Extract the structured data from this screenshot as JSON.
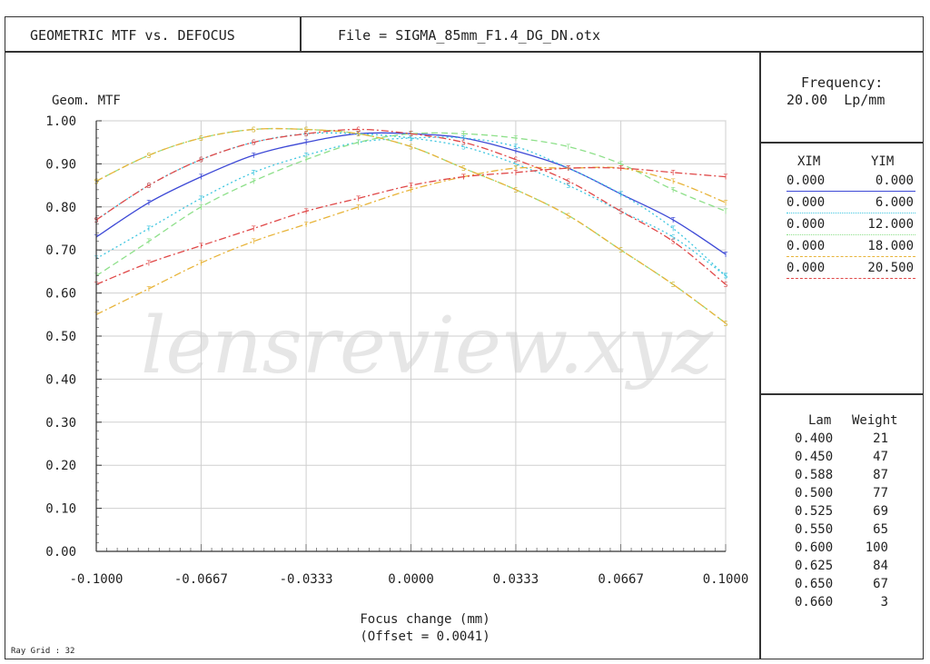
{
  "header": {
    "title": "GEOMETRIC MTF vs. DEFOCUS",
    "file": "File = SIGMA_85mm_F1.4_DG_DN.otx"
  },
  "frequency": {
    "label": "Frequency:",
    "value": "20.00  Lp/mm"
  },
  "field_table": {
    "col1": "XIM",
    "col2": "YIM",
    "rows": [
      {
        "xim": "0.000",
        "yim": "0.000",
        "color": "#3d49d6"
      },
      {
        "xim": "0.000",
        "yim": "6.000",
        "color": "#3ec6e0"
      },
      {
        "xim": "0.000",
        "yim": "12.000",
        "color": "#8ee08a"
      },
      {
        "xim": "0.000",
        "yim": "18.000",
        "color": "#e8b43a"
      },
      {
        "xim": "0.000",
        "yim": "20.500",
        "color": "#e04848"
      }
    ]
  },
  "wavelength_table": {
    "col1": "Lam",
    "col2": "Weight",
    "rows": [
      {
        "lam": "0.400",
        "weight": "21"
      },
      {
        "lam": "0.450",
        "weight": "47"
      },
      {
        "lam": "0.588",
        "weight": "87"
      },
      {
        "lam": "0.500",
        "weight": "77"
      },
      {
        "lam": "0.525",
        "weight": "69"
      },
      {
        "lam": "0.550",
        "weight": "65"
      },
      {
        "lam": "0.600",
        "weight": "100"
      },
      {
        "lam": "0.625",
        "weight": "84"
      },
      {
        "lam": "0.650",
        "weight": "67"
      },
      {
        "lam": "0.660",
        "weight": "3"
      }
    ]
  },
  "ray_grid": "Ray Grid : 32",
  "watermark": "lensreview.xyz",
  "chart_data": {
    "type": "line",
    "ylabel": "Geom. MTF",
    "xlabel": "Focus change (mm)",
    "xlabel2": "(Offset = 0.0041)",
    "xlim": [
      -0.1,
      0.1
    ],
    "ylim": [
      0,
      1.0
    ],
    "xticks": [
      "-0.1000",
      "-0.0667",
      "-0.0333",
      "0.0000",
      "0.0333",
      "0.0667",
      "0.1000"
    ],
    "xtick_values": [
      -0.1,
      -0.0667,
      -0.0333,
      0.0,
      0.0333,
      0.0667,
      0.1
    ],
    "yticks": [
      "0.00",
      "0.10",
      "0.20",
      "0.30",
      "0.40",
      "0.50",
      "0.60",
      "0.70",
      "0.80",
      "0.90",
      "1.00"
    ],
    "ytick_values": [
      0,
      0.1,
      0.2,
      0.3,
      0.4,
      0.5,
      0.6,
      0.7,
      0.8,
      0.9,
      1.0
    ],
    "grid": true,
    "x": [
      -0.1,
      -0.0833,
      -0.0667,
      -0.05,
      -0.0333,
      -0.0167,
      0.0,
      0.0167,
      0.0333,
      0.05,
      0.0667,
      0.0833,
      0.1
    ],
    "series": [
      {
        "color": "#3d49d6",
        "style": "solid",
        "marker": "T",
        "values": [
          0.73,
          0.81,
          0.87,
          0.92,
          0.95,
          0.97,
          0.97,
          0.96,
          0.93,
          0.89,
          0.83,
          0.77,
          0.69
        ]
      },
      {
        "color": "#3ec6e0",
        "style": "dotted",
        "marker": "T",
        "values": [
          0.68,
          0.75,
          0.82,
          0.88,
          0.92,
          0.95,
          0.96,
          0.96,
          0.94,
          0.89,
          0.83,
          0.75,
          0.64
        ]
      },
      {
        "color": "#3ec6e0",
        "style": "dotted",
        "marker": "S",
        "values": [
          0.77,
          0.85,
          0.91,
          0.95,
          0.97,
          0.97,
          0.96,
          0.94,
          0.9,
          0.85,
          0.79,
          0.73,
          0.64
        ]
      },
      {
        "color": "#8ee08a",
        "style": "dashed",
        "marker": "T",
        "values": [
          0.64,
          0.72,
          0.8,
          0.86,
          0.91,
          0.95,
          0.97,
          0.97,
          0.96,
          0.94,
          0.9,
          0.84,
          0.79
        ]
      },
      {
        "color": "#8ee08a",
        "style": "dashed",
        "marker": "S",
        "values": [
          0.86,
          0.92,
          0.96,
          0.98,
          0.98,
          0.97,
          0.94,
          0.89,
          0.84,
          0.78,
          0.7,
          0.62,
          0.53
        ]
      },
      {
        "color": "#e8b43a",
        "style": "dashdot",
        "marker": "T",
        "values": [
          0.55,
          0.61,
          0.67,
          0.72,
          0.76,
          0.8,
          0.84,
          0.87,
          0.89,
          0.89,
          0.89,
          0.86,
          0.81
        ]
      },
      {
        "color": "#e8b43a",
        "style": "dashdot",
        "marker": "S",
        "values": [
          0.86,
          0.92,
          0.96,
          0.98,
          0.98,
          0.97,
          0.94,
          0.89,
          0.84,
          0.78,
          0.7,
          0.62,
          0.53
        ]
      },
      {
        "color": "#e04848",
        "style": "dashdot",
        "marker": "T",
        "values": [
          0.62,
          0.67,
          0.71,
          0.75,
          0.79,
          0.82,
          0.85,
          0.87,
          0.88,
          0.89,
          0.89,
          0.88,
          0.87
        ]
      },
      {
        "color": "#e04848",
        "style": "dashdot",
        "marker": "S",
        "values": [
          0.77,
          0.85,
          0.91,
          0.95,
          0.97,
          0.98,
          0.97,
          0.95,
          0.91,
          0.86,
          0.79,
          0.72,
          0.62
        ]
      }
    ]
  }
}
